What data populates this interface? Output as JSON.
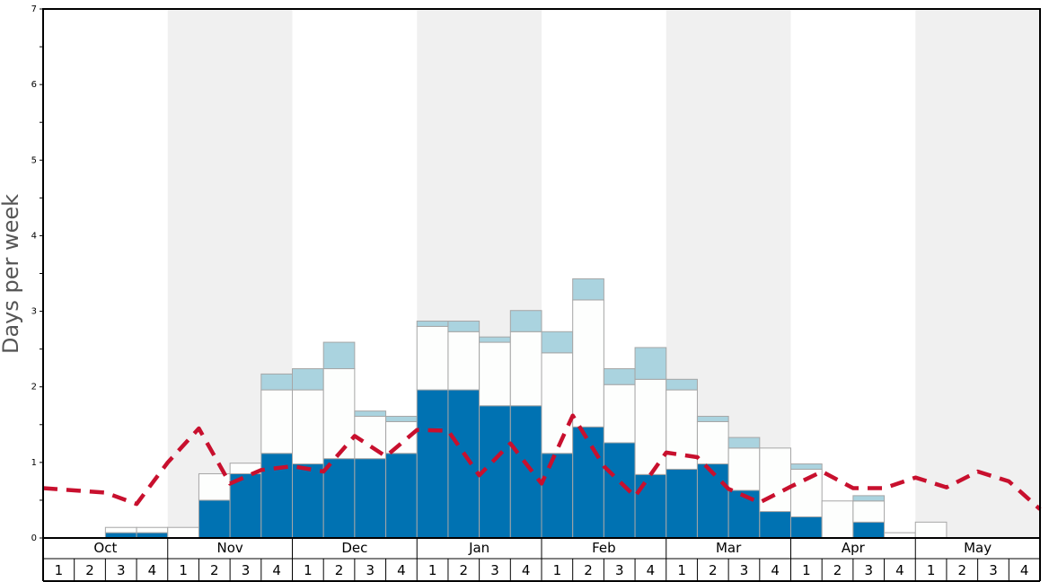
{
  "chart_data": {
    "type": "bar",
    "ylabel": "Days per week",
    "ylim": [
      0,
      7
    ],
    "yticks": [
      "0",
      "1",
      "2",
      "3",
      "4",
      "5",
      "6",
      "7"
    ],
    "months": [
      "Oct",
      "Nov",
      "Dec",
      "Jan",
      "Feb",
      "Mar",
      "Apr",
      "May"
    ],
    "week_labels": [
      "1",
      "2",
      "3",
      "4"
    ],
    "colors": {
      "dark": "#0072b2",
      "white": "#fdfefd",
      "light": "#aad3df",
      "line": "#c8102e",
      "band": "#f0f0f0",
      "bar_border": "#a6a6a6"
    },
    "stack_dark": [
      0,
      0,
      0.07,
      0.07,
      0,
      0.5,
      0.85,
      1.12,
      0.98,
      1.05,
      1.05,
      1.12,
      1.96,
      1.96,
      1.75,
      1.75,
      1.12,
      1.47,
      1.26,
      0.84,
      0.91,
      0.98,
      0.63,
      0.35,
      0.28,
      0,
      0.21,
      0,
      0,
      0,
      0,
      0
    ],
    "stack_white": [
      0,
      0,
      0.07,
      0.07,
      0.14,
      0.35,
      0.14,
      0.84,
      0.98,
      1.19,
      0.56,
      0.42,
      0.84,
      0.77,
      0.84,
      0.98,
      1.33,
      1.68,
      0.77,
      1.26,
      1.05,
      0.56,
      0.56,
      0.84,
      0.63,
      0.49,
      0.28,
      0.07,
      0.21,
      0,
      0,
      0
    ],
    "stack_light": [
      0,
      0,
      0,
      0,
      0,
      0,
      0,
      0.21,
      0.28,
      0.35,
      0.07,
      0.07,
      0.07,
      0.14,
      0.07,
      0.28,
      0.28,
      0.28,
      0.21,
      0.42,
      0.14,
      0.07,
      0.14,
      0,
      0.07,
      0,
      0.07,
      0,
      0,
      0,
      0,
      0
    ],
    "line_values": [
      0.66,
      0.63,
      0.6,
      0.45,
      1.0,
      1.45,
      0.72,
      0.9,
      0.95,
      0.88,
      1.35,
      1.08,
      1.43,
      1.42,
      0.83,
      1.25,
      0.72,
      1.62,
      0.95,
      0.55,
      1.13,
      1.07,
      0.65,
      0.47,
      0.68,
      0.88,
      0.66,
      0.66,
      0.8,
      0.67,
      0.88,
      0.75,
      0.38
    ]
  }
}
